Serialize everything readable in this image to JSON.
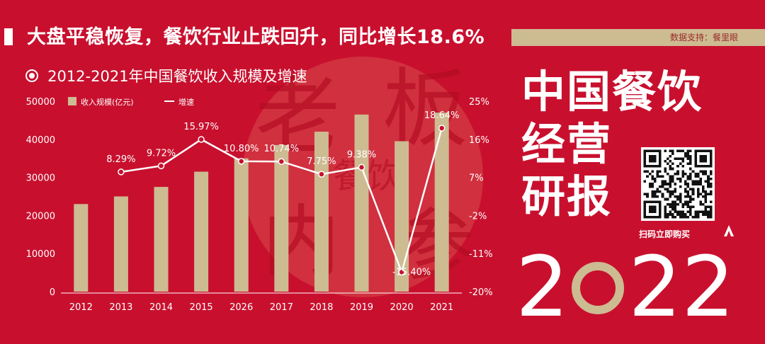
{
  "headline": "大盘平稳恢复，餐饮行业止跌回升，同比增长18.6%",
  "source": "数据支持：餐里眼",
  "chart_title": "2012-2021年中国餐饮收入规模及增速",
  "side_title": {
    "line1": "中国餐饮",
    "line2": "经营",
    "line3": "研报"
  },
  "qr_label": "扫码立即购买",
  "year": {
    "left": "2",
    "right": "22"
  },
  "watermark": {
    "chars": [
      "老",
      "板",
      "餐饮",
      "内",
      "参"
    ]
  },
  "colors": {
    "background": "#c8102e",
    "bar": "#cdbb92",
    "line": "#ffffff",
    "accent": "#cdbb92"
  },
  "chart_data": {
    "type": "bar",
    "categories": [
      "2012",
      "2013",
      "2014",
      "2015",
      "2026",
      "2017",
      "2018",
      "2019",
      "2020",
      "2021"
    ],
    "series": [
      {
        "name": "收入规模(亿元)",
        "type": "bar",
        "axis": "left",
        "values": [
          23000,
          25000,
          27500,
          31500,
          35000,
          38500,
          42000,
          46500,
          39500,
          47000
        ]
      },
      {
        "name": "增速",
        "type": "line",
        "axis": "right",
        "values": [
          null,
          8.29,
          9.72,
          15.97,
          10.8,
          10.74,
          7.75,
          9.38,
          -15.4,
          18.64
        ],
        "labels": [
          "",
          "8.29%",
          "9.72%",
          "15.97%",
          "10.80%",
          "10.74%",
          "7.75%",
          "9.38%",
          "-15.40%",
          "18.64%"
        ]
      }
    ],
    "ylim_left": [
      0,
      50000
    ],
    "yticks_left": [
      "0",
      "10000",
      "20000",
      "30000",
      "40000",
      "50000"
    ],
    "ylim_right": [
      -20,
      25
    ],
    "yticks_right": [
      "-20%",
      "-11%",
      "-2%",
      "7%",
      "16%",
      "25%"
    ],
    "legend": "top-left",
    "grid": false
  }
}
